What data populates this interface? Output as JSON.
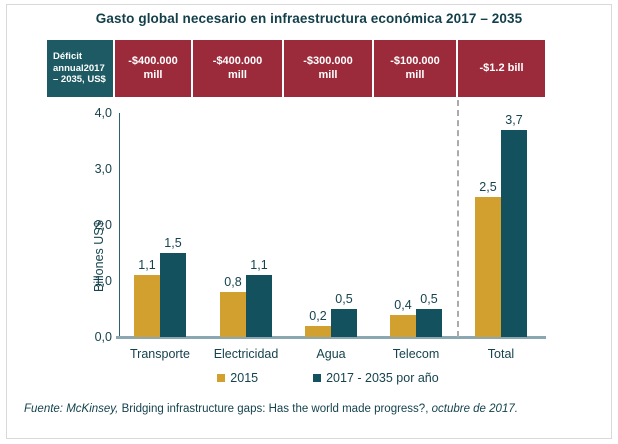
{
  "title": "Gasto global necesario en infraestructura económica 2017 – 2035",
  "deficit_header": {
    "row_label": "Déficit\nannual2017\n– 2035, US$",
    "cells": [
      "-$400.000\nmill",
      "-$400.000\nmill",
      "-$300.000\nmill",
      "-$100.000\nmill",
      "-$1.2 bill"
    ]
  },
  "chart_data": {
    "type": "bar",
    "categories": [
      "Transporte",
      "Electricidad",
      "Agua",
      "Telecom",
      "Total"
    ],
    "series": [
      {
        "name": "2015",
        "color": "#D1A02F",
        "values": [
          1.1,
          0.8,
          0.2,
          0.4,
          2.5
        ]
      },
      {
        "name": "2017 - 2035 por año",
        "color": "#14515F",
        "values": [
          1.5,
          1.1,
          0.5,
          0.5,
          3.7
        ]
      }
    ],
    "value_labels": [
      [
        "1,1",
        "0,8",
        "0,2",
        "0,4",
        "2,5"
      ],
      [
        "1,5",
        "1,1",
        "0,5",
        "0,5",
        "3,7"
      ]
    ],
    "ylabel": "Billones US$",
    "xlabel": "",
    "y_tick_labels": [
      "4,0",
      "3,0",
      "2,0",
      "1,0",
      "0,0"
    ],
    "y_tick_values": [
      4,
      3,
      2,
      1,
      0
    ],
    "ylim": [
      0,
      4
    ],
    "grid": false,
    "legend_position": "bottom",
    "separator_before_category": "Total"
  },
  "legend": {
    "items": [
      "2015",
      "2017 - 2035 por año"
    ]
  },
  "footer": {
    "source_italic": "Fuente: McKinsey,",
    "source_regular": " Bridging infrastructure gaps: Has the world made progress?, ",
    "date_italic": "octubre de 2017."
  },
  "colors": {
    "header_label_bg": "#1D5A64",
    "header_cell_bg": "#9B2B3B",
    "header_text": "#FFFFFF",
    "series_2015": "#D1A02F",
    "series_2017_2035": "#14515F",
    "title_text": "#123F4A",
    "body_text": "#16434E",
    "x_axis": "#8AA7B2",
    "y_axis": "#2A6270",
    "separator": "#ABABAB",
    "frame_border": "#D9D9D9"
  }
}
